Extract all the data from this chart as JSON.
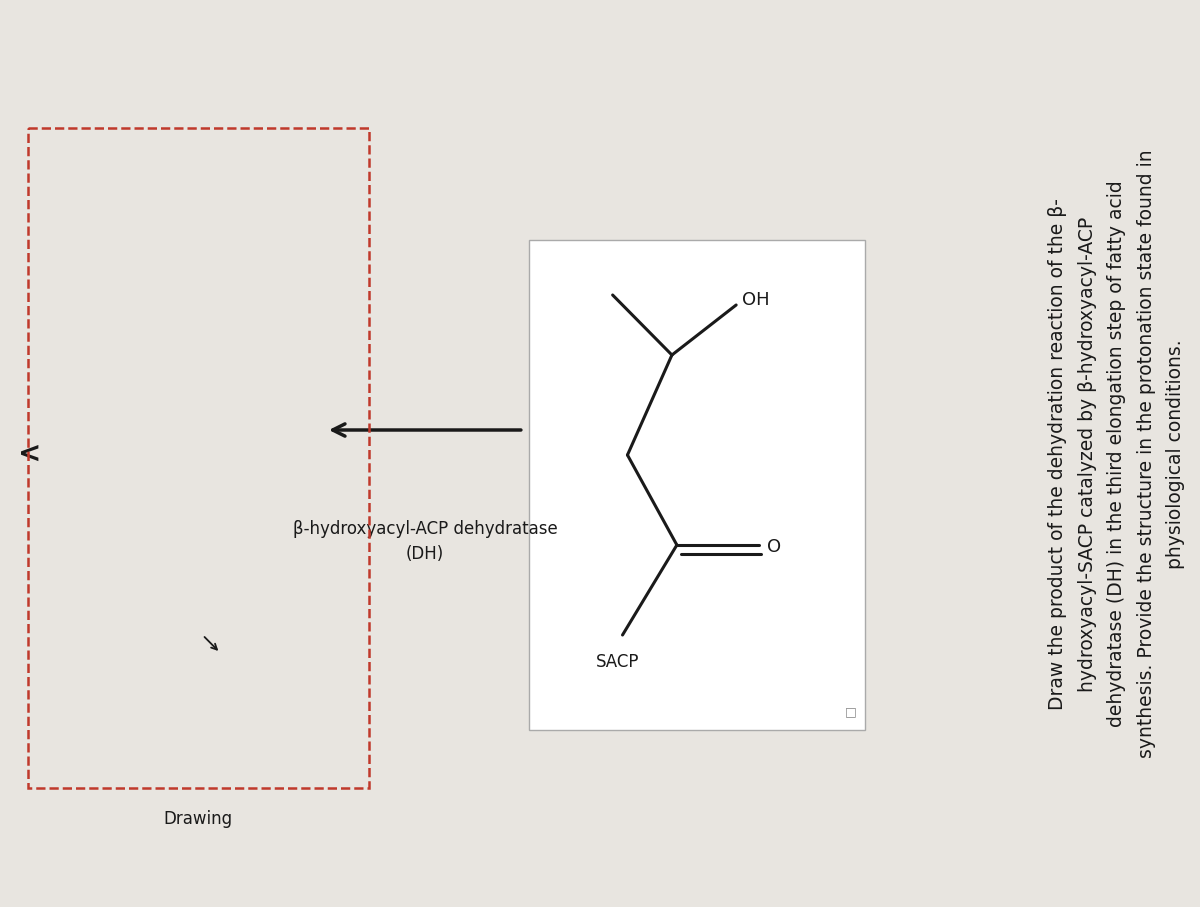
{
  "bg_color": "#e8e5e0",
  "text_color": "#1a1a1a",
  "molecule_line_color": "#1a1a1a",
  "dashed_box_color": "#c0392b",
  "title_lines": [
    "Draw the product of the dehydration reaction of the β-",
    "hydroxyacyl-SACP catalyzed by β-hydroxyacyl-ACP",
    "dehydratase (DH) in the third elongation step of fatty acid",
    "synthesis. Provide the structure in the protonation state found in",
    "physiological conditions."
  ],
  "enzyme_label_line1": "β-hydroxyacyl-ACP dehydratase",
  "enzyme_label_line2": "(DH)",
  "drawing_label": "Drawing",
  "back_arrow": "<"
}
